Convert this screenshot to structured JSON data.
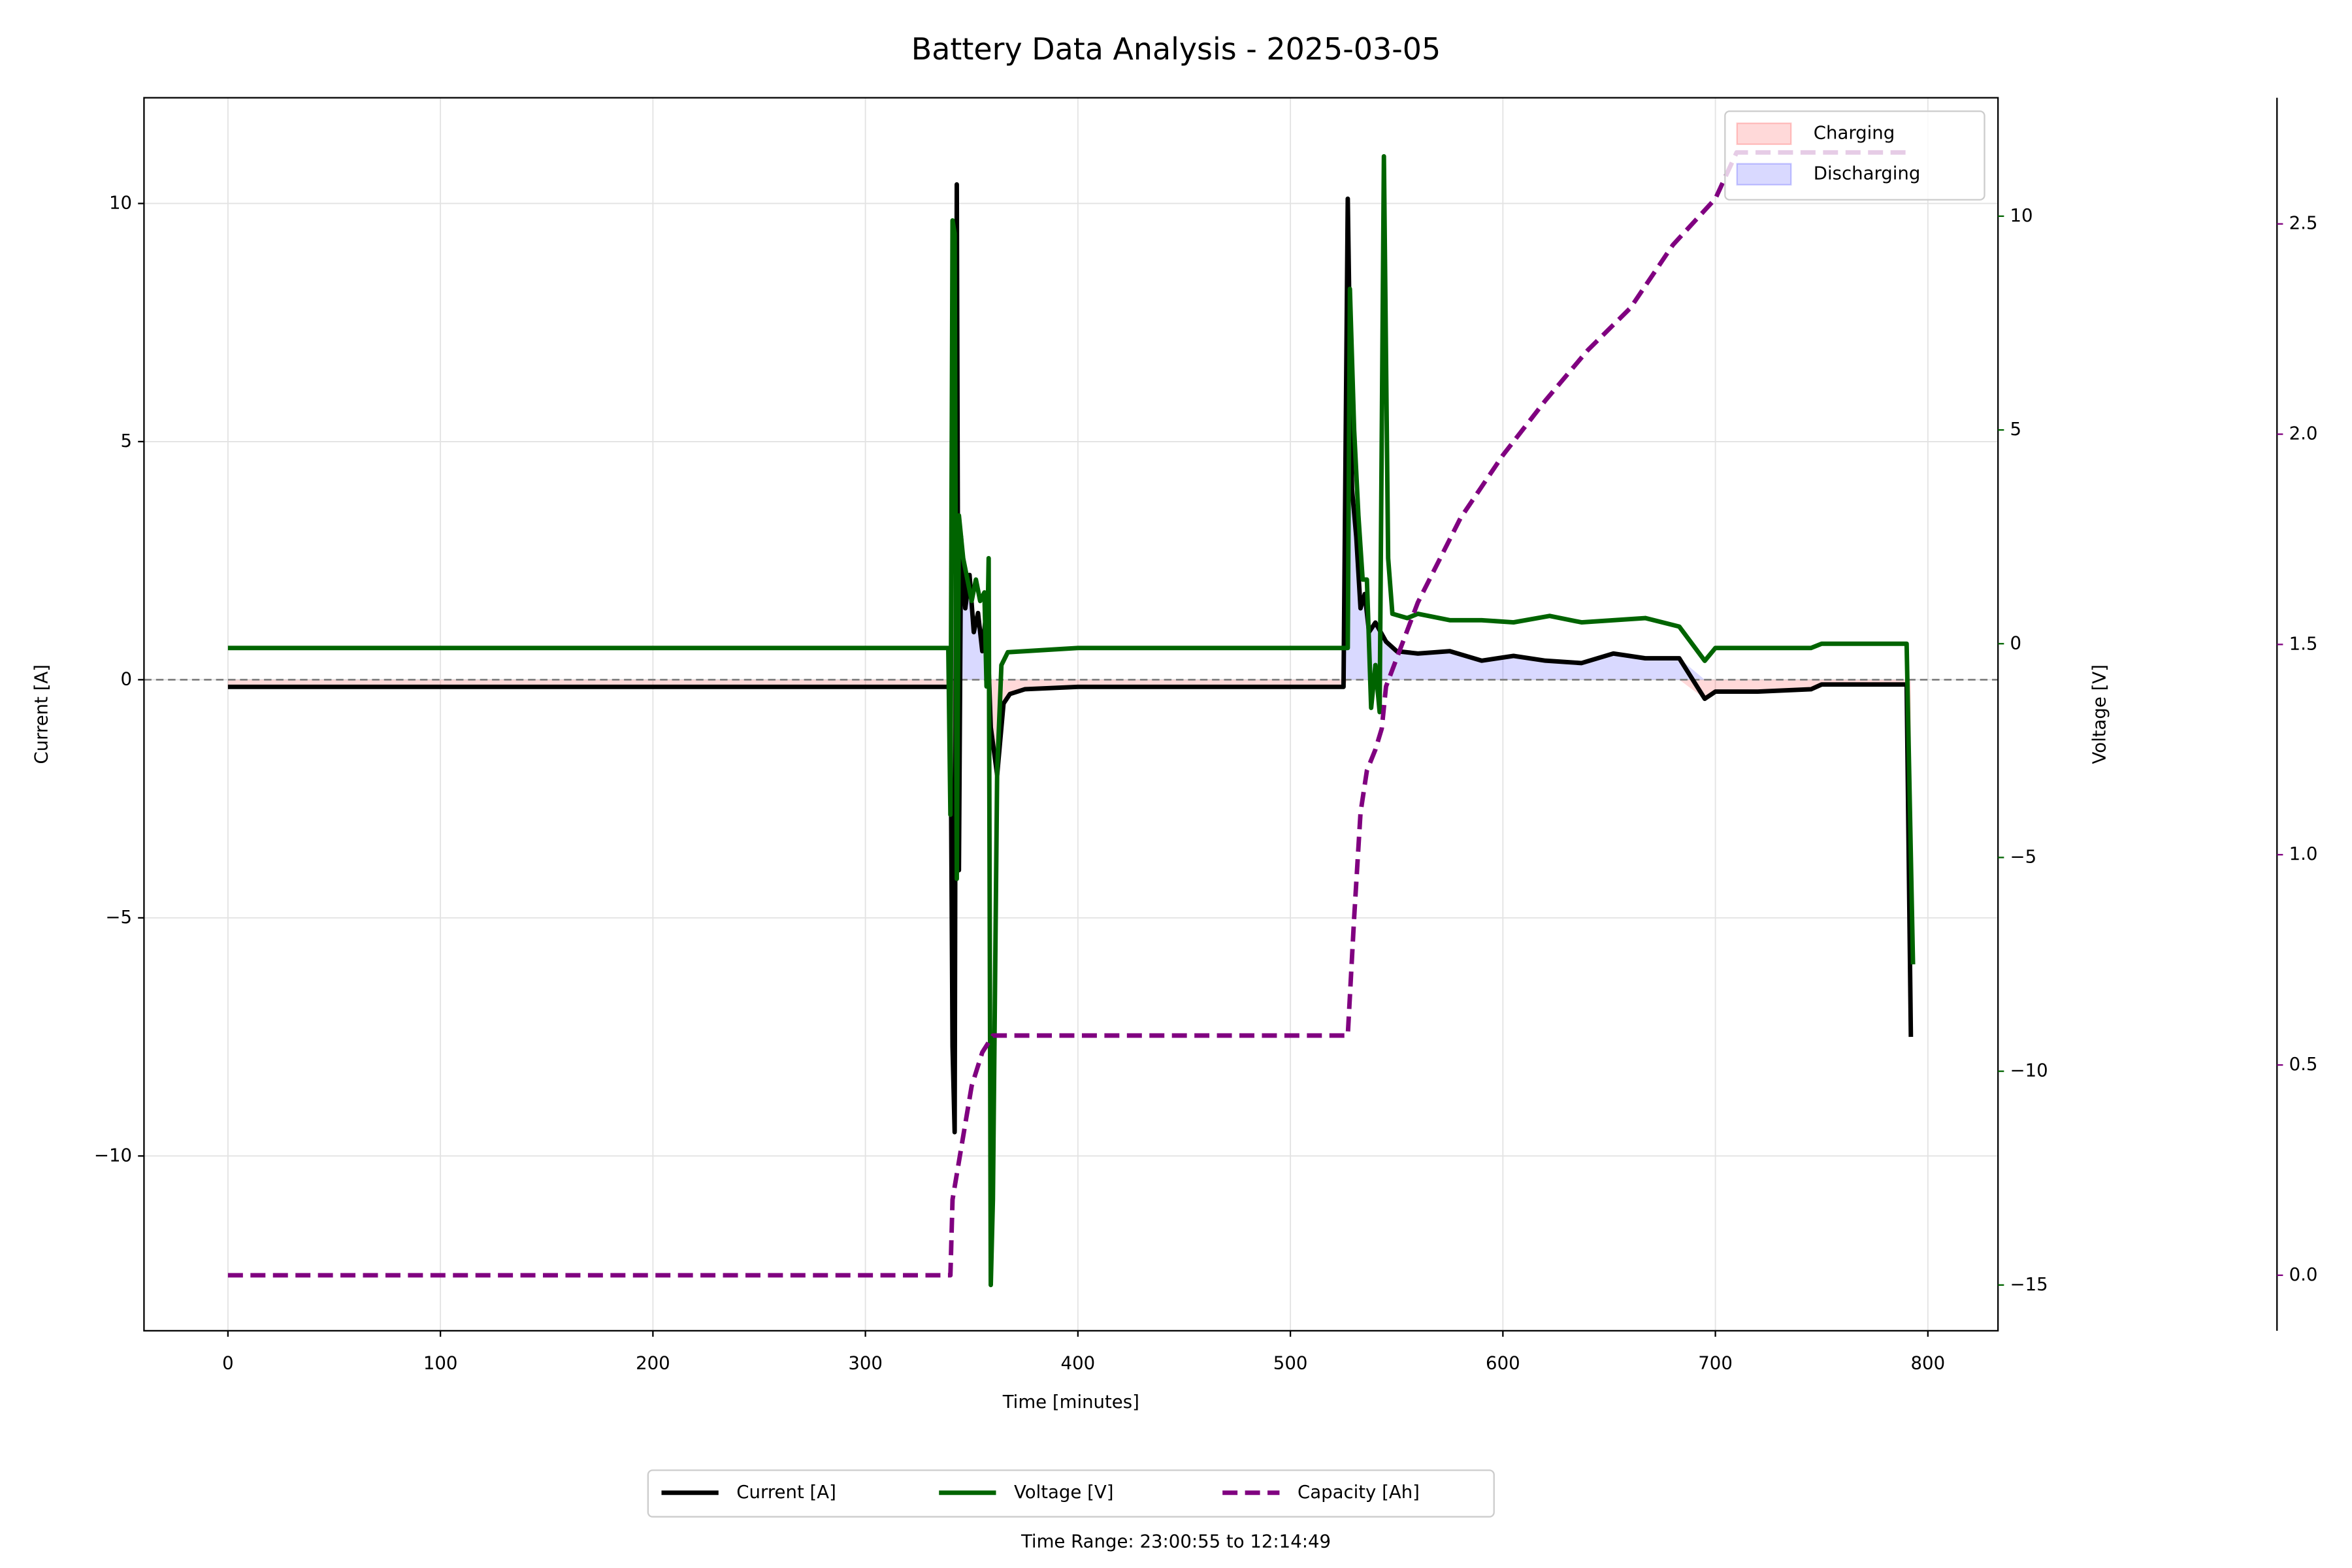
{
  "chart_data": {
    "type": "line",
    "title": "Battery Data Analysis - 2025-03-05",
    "xlabel": "Time [minutes]",
    "ylabel": "Current [A]",
    "y2label": "Voltage [V]",
    "footnote": "Time Range: 23:00:55 to 12:14:49",
    "xlim": [
      -39.5,
      833
    ],
    "xticks": [
      0,
      100,
      200,
      300,
      400,
      500,
      600,
      700,
      800
    ],
    "ylim": [
      -13.67,
      12.22
    ],
    "yticks": [
      {
        "value": -10,
        "label": "−10"
      },
      {
        "value": -5,
        "label": "−5"
      },
      0,
      5,
      10
    ],
    "y2lim": [
      -16.07,
      12.77
    ],
    "y2ticks": [
      {
        "value": -15,
        "label": "−15"
      },
      {
        "value": -10,
        "label": "−10"
      },
      {
        "value": -5,
        "label": "−5"
      },
      0,
      5,
      10
    ],
    "y2color": "#006400",
    "y3lim": [
      -0.132,
      2.8
    ],
    "y3ticks": [
      {
        "value": 0,
        "label": "0.0"
      },
      0.5,
      {
        "value": 1,
        "label": "1.0"
      },
      1.5,
      {
        "value": 2,
        "label": "2.0"
      },
      2.5
    ],
    "y3color": "#800080",
    "grid": true,
    "reference_line": 0,
    "fill_legend": [
      {
        "name": "Charging",
        "color": "#ff0000"
      },
      {
        "name": "Discharging",
        "color": "#0000ff"
      }
    ],
    "legend": "lower center",
    "series": [
      {
        "name": "Current [A]",
        "color": "#000000",
        "axis": "y",
        "x": [
          0,
          50,
          100,
          150,
          200,
          250,
          300,
          340,
          341,
          342,
          343,
          344,
          345,
          347,
          349,
          351,
          353,
          355,
          357,
          359,
          362,
          365,
          368,
          375,
          400,
          450,
          500,
          525,
          527,
          529,
          531,
          533,
          535,
          537,
          540,
          545,
          550,
          560,
          575,
          590,
          605,
          620,
          637,
          652,
          667,
          683,
          695,
          700,
          720,
          745,
          750,
          770,
          790,
          792
        ],
        "values": [
          -0.15,
          -0.15,
          -0.15,
          -0.15,
          -0.15,
          -0.15,
          -0.15,
          -0.15,
          -7.7,
          -9.5,
          10.4,
          -4,
          3,
          1.5,
          2.2,
          1,
          1.4,
          0.6,
          1.5,
          -1,
          -2,
          -0.5,
          -0.3,
          -0.2,
          -0.15,
          -0.15,
          -0.15,
          -0.15,
          10.1,
          4,
          3,
          1.5,
          1.8,
          1,
          1.2,
          0.8,
          0.6,
          0.55,
          0.6,
          0.4,
          0.5,
          0.4,
          0.35,
          0.55,
          0.45,
          0.45,
          -0.4,
          -0.25,
          -0.25,
          -0.2,
          -0.1,
          -0.1,
          -0.1,
          -7.5
        ]
      },
      {
        "name": "Voltage [V]",
        "color": "#006400",
        "axis": "y2",
        "x": [
          0,
          100,
          200,
          300,
          339,
          340,
          341,
          342,
          343,
          344,
          346,
          348,
          350,
          352,
          354,
          356,
          357,
          358,
          359,
          360,
          362,
          364,
          367,
          400,
          450,
          500,
          527,
          528,
          530,
          532,
          534,
          536,
          538,
          540,
          542,
          544,
          546,
          548,
          555,
          560,
          575,
          590,
          605,
          622,
          637,
          652,
          667,
          683,
          695,
          700,
          720,
          745,
          750,
          790,
          793
        ],
        "values": [
          -0.1,
          -0.1,
          -0.1,
          -0.1,
          -0.1,
          -4,
          9.9,
          9.6,
          -5.5,
          3,
          2,
          1.5,
          1,
          1.5,
          1,
          1.2,
          -1,
          2,
          -15,
          -13,
          -3,
          -0.5,
          -0.2,
          -0.1,
          -0.1,
          -0.1,
          -0.1,
          8.3,
          5,
          3,
          1.5,
          1.5,
          -1.5,
          -0.5,
          -1.6,
          11.4,
          2,
          0.7,
          0.6,
          0.7,
          0.55,
          0.55,
          0.5,
          0.65,
          0.5,
          0.55,
          0.6,
          0.4,
          -0.4,
          -0.1,
          -0.1,
          -0.1,
          0,
          0,
          -7.5
        ]
      },
      {
        "name": "Capacity [Ah]",
        "color": "#800080",
        "axis": "y3",
        "dashed": true,
        "x": [
          0,
          340,
          341,
          345,
          350,
          355,
          360,
          400,
          527,
          530,
          533,
          536,
          540,
          543,
          545,
          560,
          580,
          600,
          620,
          640,
          660,
          680,
          700,
          710,
          790
        ],
        "values": [
          0,
          0,
          0.18,
          0.3,
          0.45,
          0.53,
          0.57,
          0.57,
          0.57,
          0.85,
          1.1,
          1.2,
          1.25,
          1.3,
          1.4,
          1.6,
          1.8,
          1.95,
          2.08,
          2.2,
          2.3,
          2.45,
          2.56,
          2.67,
          2.67
        ]
      }
    ]
  }
}
